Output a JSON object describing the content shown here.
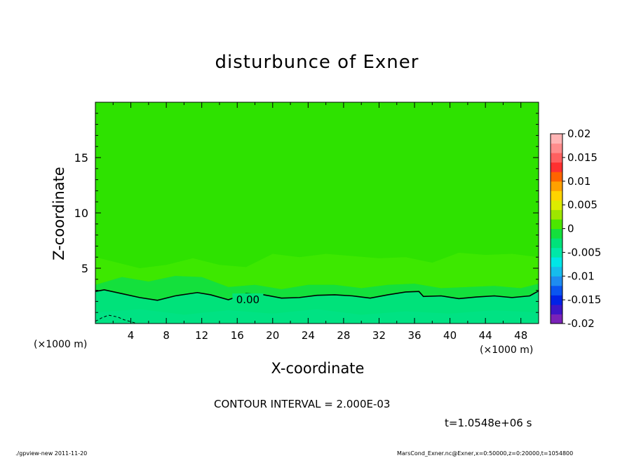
{
  "chart_data": {
    "type": "contour",
    "title": "disturbunce of Exner",
    "xlabel": "X-coordinate",
    "ylabel": "Z-coordinate",
    "x_unit_label": "(×1000 m)",
    "xlim": [
      0,
      50
    ],
    "ylim": [
      0,
      20
    ],
    "x_ticks": [
      4,
      8,
      12,
      16,
      20,
      24,
      28,
      32,
      36,
      40,
      44,
      48
    ],
    "y_ticks": [
      5,
      10,
      15
    ],
    "colorbar": {
      "ticks": [
        "0.02",
        "0.015",
        "0.01",
        "0.005",
        "0",
        "-0.005",
        "-0.01",
        "-0.015",
        "-0.02"
      ],
      "range": [
        -0.02,
        0.02
      ],
      "colors": [
        "#7a22b8",
        "#3d16c8",
        "#0022e6",
        "#0a55f0",
        "#1e8cf0",
        "#16bcec",
        "#00e6e6",
        "#00e8a8",
        "#00e27a",
        "#14e03c",
        "#4be600",
        "#9ee600",
        "#dcec00",
        "#ffd400",
        "#ffa000",
        "#ff6400",
        "#ff3030",
        "#ff6060",
        "#ff8c8c",
        "#ffb4b4"
      ]
    },
    "bands": [
      {
        "label": "0.004 to 0.006",
        "color": "#2ee200"
      },
      {
        "label": "0.002 to 0.004",
        "color": "#14e03c"
      },
      {
        "label": "0 to 0.002",
        "color": "#00e27a"
      }
    ],
    "contours": [
      {
        "level": "0.00",
        "label": "0.00",
        "style": "solid",
        "x": [
          0,
          1,
          3,
          5,
          7,
          9,
          11.5,
          13,
          15,
          17,
          19,
          21,
          23,
          25,
          27,
          29,
          31,
          33,
          35,
          36.5,
          37,
          39,
          41,
          43,
          45,
          47,
          49,
          50
        ],
        "z": [
          2.9,
          3.05,
          2.7,
          2.35,
          2.1,
          2.5,
          2.8,
          2.6,
          2.15,
          2.7,
          2.6,
          2.3,
          2.35,
          2.55,
          2.6,
          2.5,
          2.3,
          2.6,
          2.85,
          2.9,
          2.45,
          2.5,
          2.25,
          2.4,
          2.5,
          2.35,
          2.5,
          2.95
        ]
      },
      {
        "level": "-0.002",
        "label": "",
        "style": "dashed",
        "x": [
          0,
          0.8,
          1.5,
          2.5,
          3.2,
          4.5
        ],
        "z": [
          0.2,
          0.55,
          0.75,
          0.6,
          0.35,
          0.05
        ]
      }
    ],
    "contour_interval_text": "CONTOUR INTERVAL = 2.000E-03"
  },
  "annotations": {
    "time": "t=1.0548e+06 s",
    "footer_left": "./gpview-new   2011-11-20",
    "footer_right": "MarsCond_Exner.nc@Exner,x=0:50000,z=0:20000,t=1054800"
  }
}
